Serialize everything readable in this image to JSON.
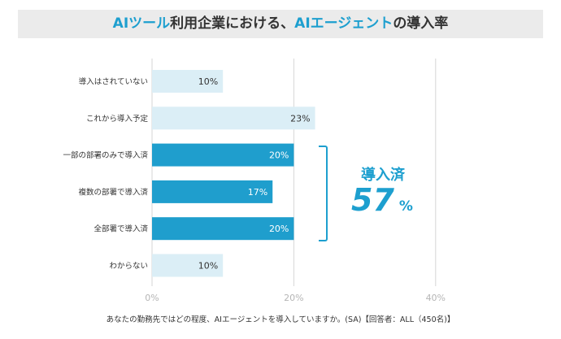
{
  "title": {
    "parts": [
      {
        "text": "AIツール",
        "highlight": true
      },
      {
        "text": "利用企業における、",
        "highlight": false
      },
      {
        "text": "AIエージェント",
        "highlight": true
      },
      {
        "text": "の導入率",
        "highlight": false
      }
    ]
  },
  "summary": {
    "label": "導入済",
    "value": "57",
    "unit": "%"
  },
  "footnote": "あなたの勤務先ではどの程度、AIエージェントを導入していますか。(SA)【回答者：ALL（450名)】",
  "colors": {
    "accent": "#1d9fcf",
    "light_bar": "#dbeef6",
    "dark_bar": "#1f9ecd",
    "grid": "#d6d6d6"
  },
  "chart_data": {
    "type": "bar",
    "orientation": "horizontal",
    "categories": [
      "導入はされていない",
      "これから導入予定",
      "一部の部署のみで導入済",
      "複数の部署で導入済",
      "全部署で導入済",
      "わからない"
    ],
    "values": [
      10,
      23,
      20,
      17,
      20,
      10
    ],
    "data_labels": [
      "10%",
      "23%",
      "20%",
      "17%",
      "20%",
      "10%"
    ],
    "highlighted": [
      false,
      false,
      true,
      true,
      true,
      false
    ],
    "x_ticks": [
      0,
      20,
      40
    ],
    "x_tick_labels": [
      "0%",
      "20%",
      "40%"
    ],
    "xlim": [
      0,
      40
    ],
    "grid": true,
    "title": "",
    "xlabel": "",
    "ylabel": ""
  }
}
